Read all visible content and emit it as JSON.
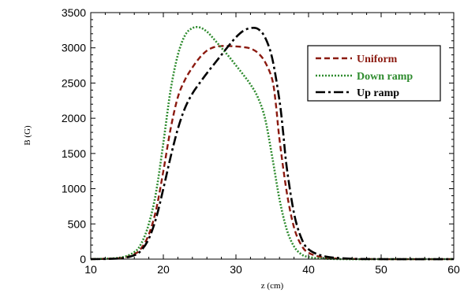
{
  "chart_data": {
    "type": "line",
    "title": "",
    "xlabel": "z (cm)",
    "ylabel": "B (G)",
    "xlim": [
      10,
      60
    ],
    "ylim": [
      0,
      3500
    ],
    "xticks": [
      10,
      20,
      30,
      40,
      50,
      60
    ],
    "yticks": [
      0,
      500,
      1000,
      1500,
      2000,
      2500,
      3000,
      3500
    ],
    "grid": false,
    "legend_position": "top-right",
    "series": [
      {
        "name": "Uniform",
        "color": "#8b1a10",
        "dash": "dashed",
        "x": [
          10,
          14,
          16,
          17,
          18,
          19,
          20,
          21,
          22,
          23,
          24,
          25,
          26,
          27,
          28,
          29,
          30,
          31,
          32,
          33,
          34,
          35,
          35.5,
          36,
          37,
          38,
          39,
          40,
          42,
          45,
          50,
          60
        ],
        "y": [
          0,
          15,
          70,
          160,
          350,
          700,
          1250,
          1850,
          2300,
          2550,
          2720,
          2860,
          2960,
          3010,
          3025,
          3025,
          3020,
          3010,
          2990,
          2930,
          2800,
          2550,
          2200,
          1700,
          950,
          450,
          200,
          90,
          25,
          5,
          0,
          0
        ]
      },
      {
        "name": "Down ramp",
        "color": "#2e8b2e",
        "dash": "dotted",
        "x": [
          10,
          14,
          16,
          17,
          18,
          19,
          20,
          21,
          22,
          23,
          24,
          25,
          26,
          27,
          28,
          29,
          30,
          31,
          32,
          33,
          34,
          35,
          36,
          37,
          38,
          39,
          40,
          42,
          45,
          50,
          60
        ],
        "y": [
          0,
          20,
          100,
          230,
          500,
          950,
          1650,
          2400,
          2900,
          3180,
          3280,
          3290,
          3230,
          3120,
          3000,
          2880,
          2750,
          2620,
          2480,
          2300,
          2000,
          1450,
          850,
          420,
          180,
          70,
          30,
          8,
          0,
          0,
          0
        ]
      },
      {
        "name": "Up ramp",
        "color": "#000000",
        "dash": "dash-dot",
        "x": [
          10,
          14,
          16,
          17,
          18,
          19,
          20,
          21,
          22,
          23,
          24,
          25,
          26,
          27,
          28,
          29,
          30,
          31,
          32,
          33,
          34,
          35,
          36,
          36.5,
          37,
          38,
          39,
          40,
          42,
          45,
          50,
          60
        ],
        "y": [
          0,
          10,
          55,
          130,
          290,
          580,
          1000,
          1450,
          1850,
          2150,
          2350,
          2500,
          2640,
          2770,
          2900,
          3030,
          3150,
          3240,
          3280,
          3270,
          3150,
          2850,
          2250,
          1800,
          1300,
          650,
          300,
          140,
          45,
          10,
          0,
          0
        ]
      }
    ]
  }
}
